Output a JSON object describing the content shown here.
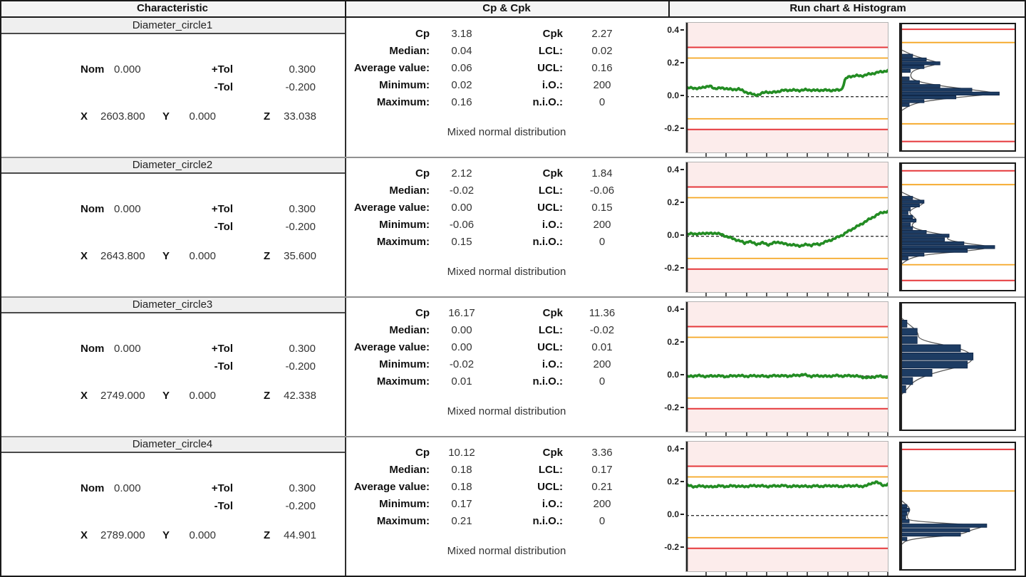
{
  "header": {
    "characteristic": "Characteristic",
    "cp_cpk": "Cp & Cpk",
    "run_hist": "Run chart & Histogram"
  },
  "labels": {
    "nom": "Nom",
    "ptol": "+Tol",
    "mtol": "-Tol",
    "x": "X",
    "y": "Y",
    "z": "Z",
    "cp": "Cp",
    "cpk": "Cpk",
    "median": "Median:",
    "lcl": "LCL:",
    "avg": "Average value:",
    "ucl": "UCL:",
    "min": "Minimum:",
    "io": "i.O.:",
    "max": "Maximum:",
    "nio": "n.i.O.:"
  },
  "rows": [
    {
      "name": "Diameter_circle1",
      "nom": "0.000",
      "ptol": "0.300",
      "mtol": "-0.200",
      "x": "2603.800",
      "y": "0.000",
      "z": "33.038",
      "cp": "3.18",
      "cpk": "2.27",
      "median": "0.04",
      "lcl": "0.02",
      "avg": "0.06",
      "ucl": "0.16",
      "min": "0.02",
      "io": "200",
      "max": "0.16",
      "nio": "0",
      "distribution": "Mixed normal distribution"
    },
    {
      "name": "Diameter_circle2",
      "nom": "0.000",
      "ptol": "0.300",
      "mtol": "-0.200",
      "x": "2643.800",
      "y": "0.000",
      "z": "35.600",
      "cp": "2.12",
      "cpk": "1.84",
      "median": "-0.02",
      "lcl": "-0.06",
      "avg": "0.00",
      "ucl": "0.15",
      "min": "-0.06",
      "io": "200",
      "max": "0.15",
      "nio": "0",
      "distribution": "Mixed normal distribution"
    },
    {
      "name": "Diameter_circle3",
      "nom": "0.000",
      "ptol": "0.300",
      "mtol": "-0.200",
      "x": "2749.000",
      "y": "0.000",
      "z": "42.338",
      "cp": "16.17",
      "cpk": "11.36",
      "median": "0.00",
      "lcl": "-0.02",
      "avg": "0.00",
      "ucl": "0.01",
      "min": "-0.02",
      "io": "200",
      "max": "0.01",
      "nio": "0",
      "distribution": "Mixed normal distribution"
    },
    {
      "name": "Diameter_circle4",
      "nom": "0.000",
      "ptol": "0.300",
      "mtol": "-0.200",
      "x": "2789.000",
      "y": "0.000",
      "z": "44.901",
      "cp": "10.12",
      "cpk": "3.36",
      "median": "0.18",
      "lcl": "0.17",
      "avg": "0.18",
      "ucl": "0.21",
      "min": "0.17",
      "io": "200",
      "max": "0.21",
      "nio": "0",
      "distribution": "Mixed normal distribution"
    }
  ],
  "colors": {
    "green": "#238c23",
    "red": "#e5383b",
    "orange": "#f5a623",
    "pink": "#fceceb",
    "bar": "#1d3c63",
    "bar_edge": "#12294a",
    "curve": "#5a5a5a",
    "zero": "#333333",
    "axis": "#222222"
  },
  "chart_data": [
    {
      "characteristic": "Diameter_circle1",
      "type": "line",
      "ylim": [
        -0.34,
        0.45
      ],
      "ytick_values": [
        0.4,
        0.2,
        0.0,
        -0.2
      ],
      "ytick_labels": [
        "0.4",
        "0.2",
        "0.0",
        "-0.2"
      ],
      "upper_tol": 0.3,
      "lower_tol": -0.2,
      "upper_warn": 0.235,
      "lower_warn": -0.135,
      "nominal": 0.0,
      "n_samples": 200,
      "n_xticks": 10,
      "run_points": [
        [
          0,
          0.05
        ],
        [
          3,
          0.055
        ],
        [
          6,
          0.048
        ],
        [
          9,
          0.06
        ],
        [
          12,
          0.063
        ],
        [
          14,
          0.05
        ],
        [
          17,
          0.052
        ],
        [
          20,
          0.05
        ],
        [
          23,
          0.042
        ],
        [
          26,
          0.048
        ],
        [
          29,
          0.03
        ],
        [
          32,
          0.018
        ],
        [
          34,
          0.01
        ],
        [
          36,
          0.012
        ],
        [
          38,
          0.022
        ],
        [
          40,
          0.03
        ],
        [
          42,
          0.024
        ],
        [
          45,
          0.03
        ],
        [
          48,
          0.038
        ],
        [
          52,
          0.04
        ],
        [
          56,
          0.038
        ],
        [
          60,
          0.042
        ],
        [
          64,
          0.038
        ],
        [
          68,
          0.04
        ],
        [
          72,
          0.038
        ],
        [
          75,
          0.04
        ],
        [
          77,
          0.042
        ],
        [
          78,
          0.07
        ],
        [
          79,
          0.11
        ],
        [
          81,
          0.122
        ],
        [
          84,
          0.128
        ],
        [
          87,
          0.126
        ],
        [
          90,
          0.135
        ],
        [
          93,
          0.142
        ],
        [
          96,
          0.15
        ],
        [
          100,
          0.158
        ]
      ],
      "hist": {
        "red_top": 0.04,
        "orange_top": 0.145,
        "orange_bottom": 0.79,
        "red_bottom": 0.93,
        "bar_h": 2.4,
        "bars": [
          [
            0.25,
            0.1
          ],
          [
            0.28,
            0.22
          ],
          [
            0.31,
            0.34
          ],
          [
            0.34,
            0.2
          ],
          [
            0.37,
            0.08
          ],
          [
            0.43,
            0.07
          ],
          [
            0.46,
            0.16
          ],
          [
            0.49,
            0.34
          ],
          [
            0.52,
            0.62
          ],
          [
            0.55,
            0.86
          ],
          [
            0.58,
            0.48
          ],
          [
            0.61,
            0.2
          ],
          [
            0.64,
            0.07
          ]
        ]
      }
    },
    {
      "characteristic": "Diameter_circle2",
      "type": "line",
      "ylim": [
        -0.34,
        0.45
      ],
      "ytick_values": [
        0.4,
        0.2,
        0.0,
        -0.2
      ],
      "ytick_labels": [
        "0.4",
        "0.2",
        "0.0",
        "-0.2"
      ],
      "upper_tol": 0.3,
      "lower_tol": -0.2,
      "upper_warn": 0.235,
      "lower_warn": -0.135,
      "nominal": 0.0,
      "n_samples": 200,
      "n_xticks": 10,
      "run_points": [
        [
          0,
          0.008
        ],
        [
          3,
          0.018
        ],
        [
          6,
          0.012
        ],
        [
          9,
          0.02
        ],
        [
          12,
          0.016
        ],
        [
          15,
          0.02
        ],
        [
          18,
          0.008
        ],
        [
          21,
          -0.005
        ],
        [
          24,
          -0.018
        ],
        [
          27,
          -0.03
        ],
        [
          29,
          -0.042
        ],
        [
          31,
          -0.03
        ],
        [
          33,
          -0.04
        ],
        [
          35,
          -0.048
        ],
        [
          38,
          -0.04
        ],
        [
          41,
          -0.052
        ],
        [
          44,
          -0.038
        ],
        [
          46,
          -0.035
        ],
        [
          48,
          -0.045
        ],
        [
          51,
          -0.05
        ],
        [
          54,
          -0.055
        ],
        [
          57,
          -0.058
        ],
        [
          60,
          -0.05
        ],
        [
          62,
          -0.055
        ],
        [
          64,
          -0.048
        ],
        [
          66,
          -0.05
        ],
        [
          68,
          -0.04
        ],
        [
          70,
          -0.03
        ],
        [
          72,
          -0.022
        ],
        [
          74,
          -0.012
        ],
        [
          76,
          0.0
        ],
        [
          78,
          0.01
        ],
        [
          80,
          0.028
        ],
        [
          83,
          0.048
        ],
        [
          86,
          0.068
        ],
        [
          89,
          0.09
        ],
        [
          92,
          0.112
        ],
        [
          95,
          0.132
        ],
        [
          97,
          0.145
        ],
        [
          100,
          0.15
        ]
      ],
      "hist": {
        "red_top": 0.055,
        "orange_top": 0.165,
        "orange_bottom": 0.8,
        "red_bottom": 0.925,
        "bar_h": 2.4,
        "bars": [
          [
            0.27,
            0.1
          ],
          [
            0.3,
            0.2
          ],
          [
            0.33,
            0.16
          ],
          [
            0.36,
            0.08
          ],
          [
            0.39,
            0.06
          ],
          [
            0.42,
            0.1
          ],
          [
            0.45,
            0.13
          ],
          [
            0.48,
            0.08
          ],
          [
            0.51,
            0.1
          ],
          [
            0.54,
            0.22
          ],
          [
            0.57,
            0.42
          ],
          [
            0.6,
            0.38
          ],
          [
            0.63,
            0.55
          ],
          [
            0.66,
            0.82
          ],
          [
            0.69,
            0.58
          ],
          [
            0.72,
            0.2
          ],
          [
            0.75,
            0.06
          ]
        ]
      }
    },
    {
      "characteristic": "Diameter_circle3",
      "type": "line",
      "ylim": [
        -0.34,
        0.45
      ],
      "ytick_values": [
        0.4,
        0.2,
        0.0,
        -0.2
      ],
      "ytick_labels": [
        "0.4",
        "0.2",
        "0.0",
        "-0.2"
      ],
      "upper_tol": 0.3,
      "lower_tol": -0.2,
      "upper_warn": 0.235,
      "lower_warn": -0.135,
      "nominal": 0.0,
      "n_samples": 200,
      "n_xticks": 10,
      "run_points": [
        [
          0,
          -0.006
        ],
        [
          5,
          0.002
        ],
        [
          10,
          -0.003
        ],
        [
          15,
          0.001
        ],
        [
          20,
          -0.004
        ],
        [
          25,
          0.002
        ],
        [
          30,
          -0.002
        ],
        [
          35,
          0.001
        ],
        [
          40,
          -0.003
        ],
        [
          45,
          0.002
        ],
        [
          50,
          -0.001
        ],
        [
          55,
          0.003
        ],
        [
          58,
          0.008
        ],
        [
          62,
          -0.002
        ],
        [
          66,
          0.001
        ],
        [
          70,
          -0.003
        ],
        [
          74,
          0.002
        ],
        [
          78,
          -0.001
        ],
        [
          82,
          0.002
        ],
        [
          86,
          -0.004
        ],
        [
          90,
          -0.012
        ],
        [
          93,
          -0.006
        ],
        [
          96,
          -0.002
        ],
        [
          100,
          -0.008
        ]
      ],
      "hist": {
        "red_top": null,
        "orange_top": null,
        "orange_bottom": null,
        "red_bottom": null,
        "bar_h": 5.5,
        "bars": [
          [
            0.16,
            0.05
          ],
          [
            0.225,
            0.14
          ],
          [
            0.29,
            0.14
          ],
          [
            0.355,
            0.52
          ],
          [
            0.42,
            0.63
          ],
          [
            0.485,
            0.58
          ],
          [
            0.55,
            0.27
          ],
          [
            0.615,
            0.1
          ],
          [
            0.68,
            0.04
          ]
        ]
      }
    },
    {
      "characteristic": "Diameter_circle4",
      "type": "line",
      "ylim": [
        -0.34,
        0.45
      ],
      "ytick_values": [
        0.4,
        0.2,
        0.0,
        -0.2
      ],
      "ytick_labels": [
        "0.4",
        "0.2",
        "0.0",
        "-0.2"
      ],
      "upper_tol": 0.3,
      "lower_tol": -0.2,
      "upper_warn": 0.235,
      "lower_warn": -0.135,
      "nominal": 0.0,
      "n_samples": 200,
      "n_xticks": 10,
      "run_points": [
        [
          0,
          0.185
        ],
        [
          4,
          0.176
        ],
        [
          8,
          0.18
        ],
        [
          12,
          0.174
        ],
        [
          16,
          0.18
        ],
        [
          20,
          0.177
        ],
        [
          24,
          0.181
        ],
        [
          28,
          0.176
        ],
        [
          32,
          0.18
        ],
        [
          36,
          0.182
        ],
        [
          40,
          0.177
        ],
        [
          44,
          0.18
        ],
        [
          48,
          0.182
        ],
        [
          52,
          0.177
        ],
        [
          56,
          0.18
        ],
        [
          60,
          0.177
        ],
        [
          64,
          0.18
        ],
        [
          68,
          0.178
        ],
        [
          72,
          0.182
        ],
        [
          76,
          0.177
        ],
        [
          80,
          0.18
        ],
        [
          84,
          0.182
        ],
        [
          86,
          0.176
        ],
        [
          88,
          0.18
        ],
        [
          90,
          0.184
        ],
        [
          92,
          0.196
        ],
        [
          94,
          0.205
        ],
        [
          95,
          0.2
        ],
        [
          97,
          0.188
        ],
        [
          98,
          0.183
        ],
        [
          100,
          0.19
        ]
      ],
      "hist": {
        "red_top": 0.05,
        "orange_top": 0.38,
        "orange_bottom": null,
        "red_bottom": null,
        "bar_h": 2.6,
        "bars": [
          [
            0.5,
            0.05
          ],
          [
            0.53,
            0.07
          ],
          [
            0.56,
            0.05
          ],
          [
            0.59,
            0.04
          ],
          [
            0.62,
            0.07
          ],
          [
            0.655,
            0.75
          ],
          [
            0.69,
            0.6
          ],
          [
            0.725,
            0.52
          ],
          [
            0.76,
            0.05
          ]
        ]
      }
    }
  ]
}
